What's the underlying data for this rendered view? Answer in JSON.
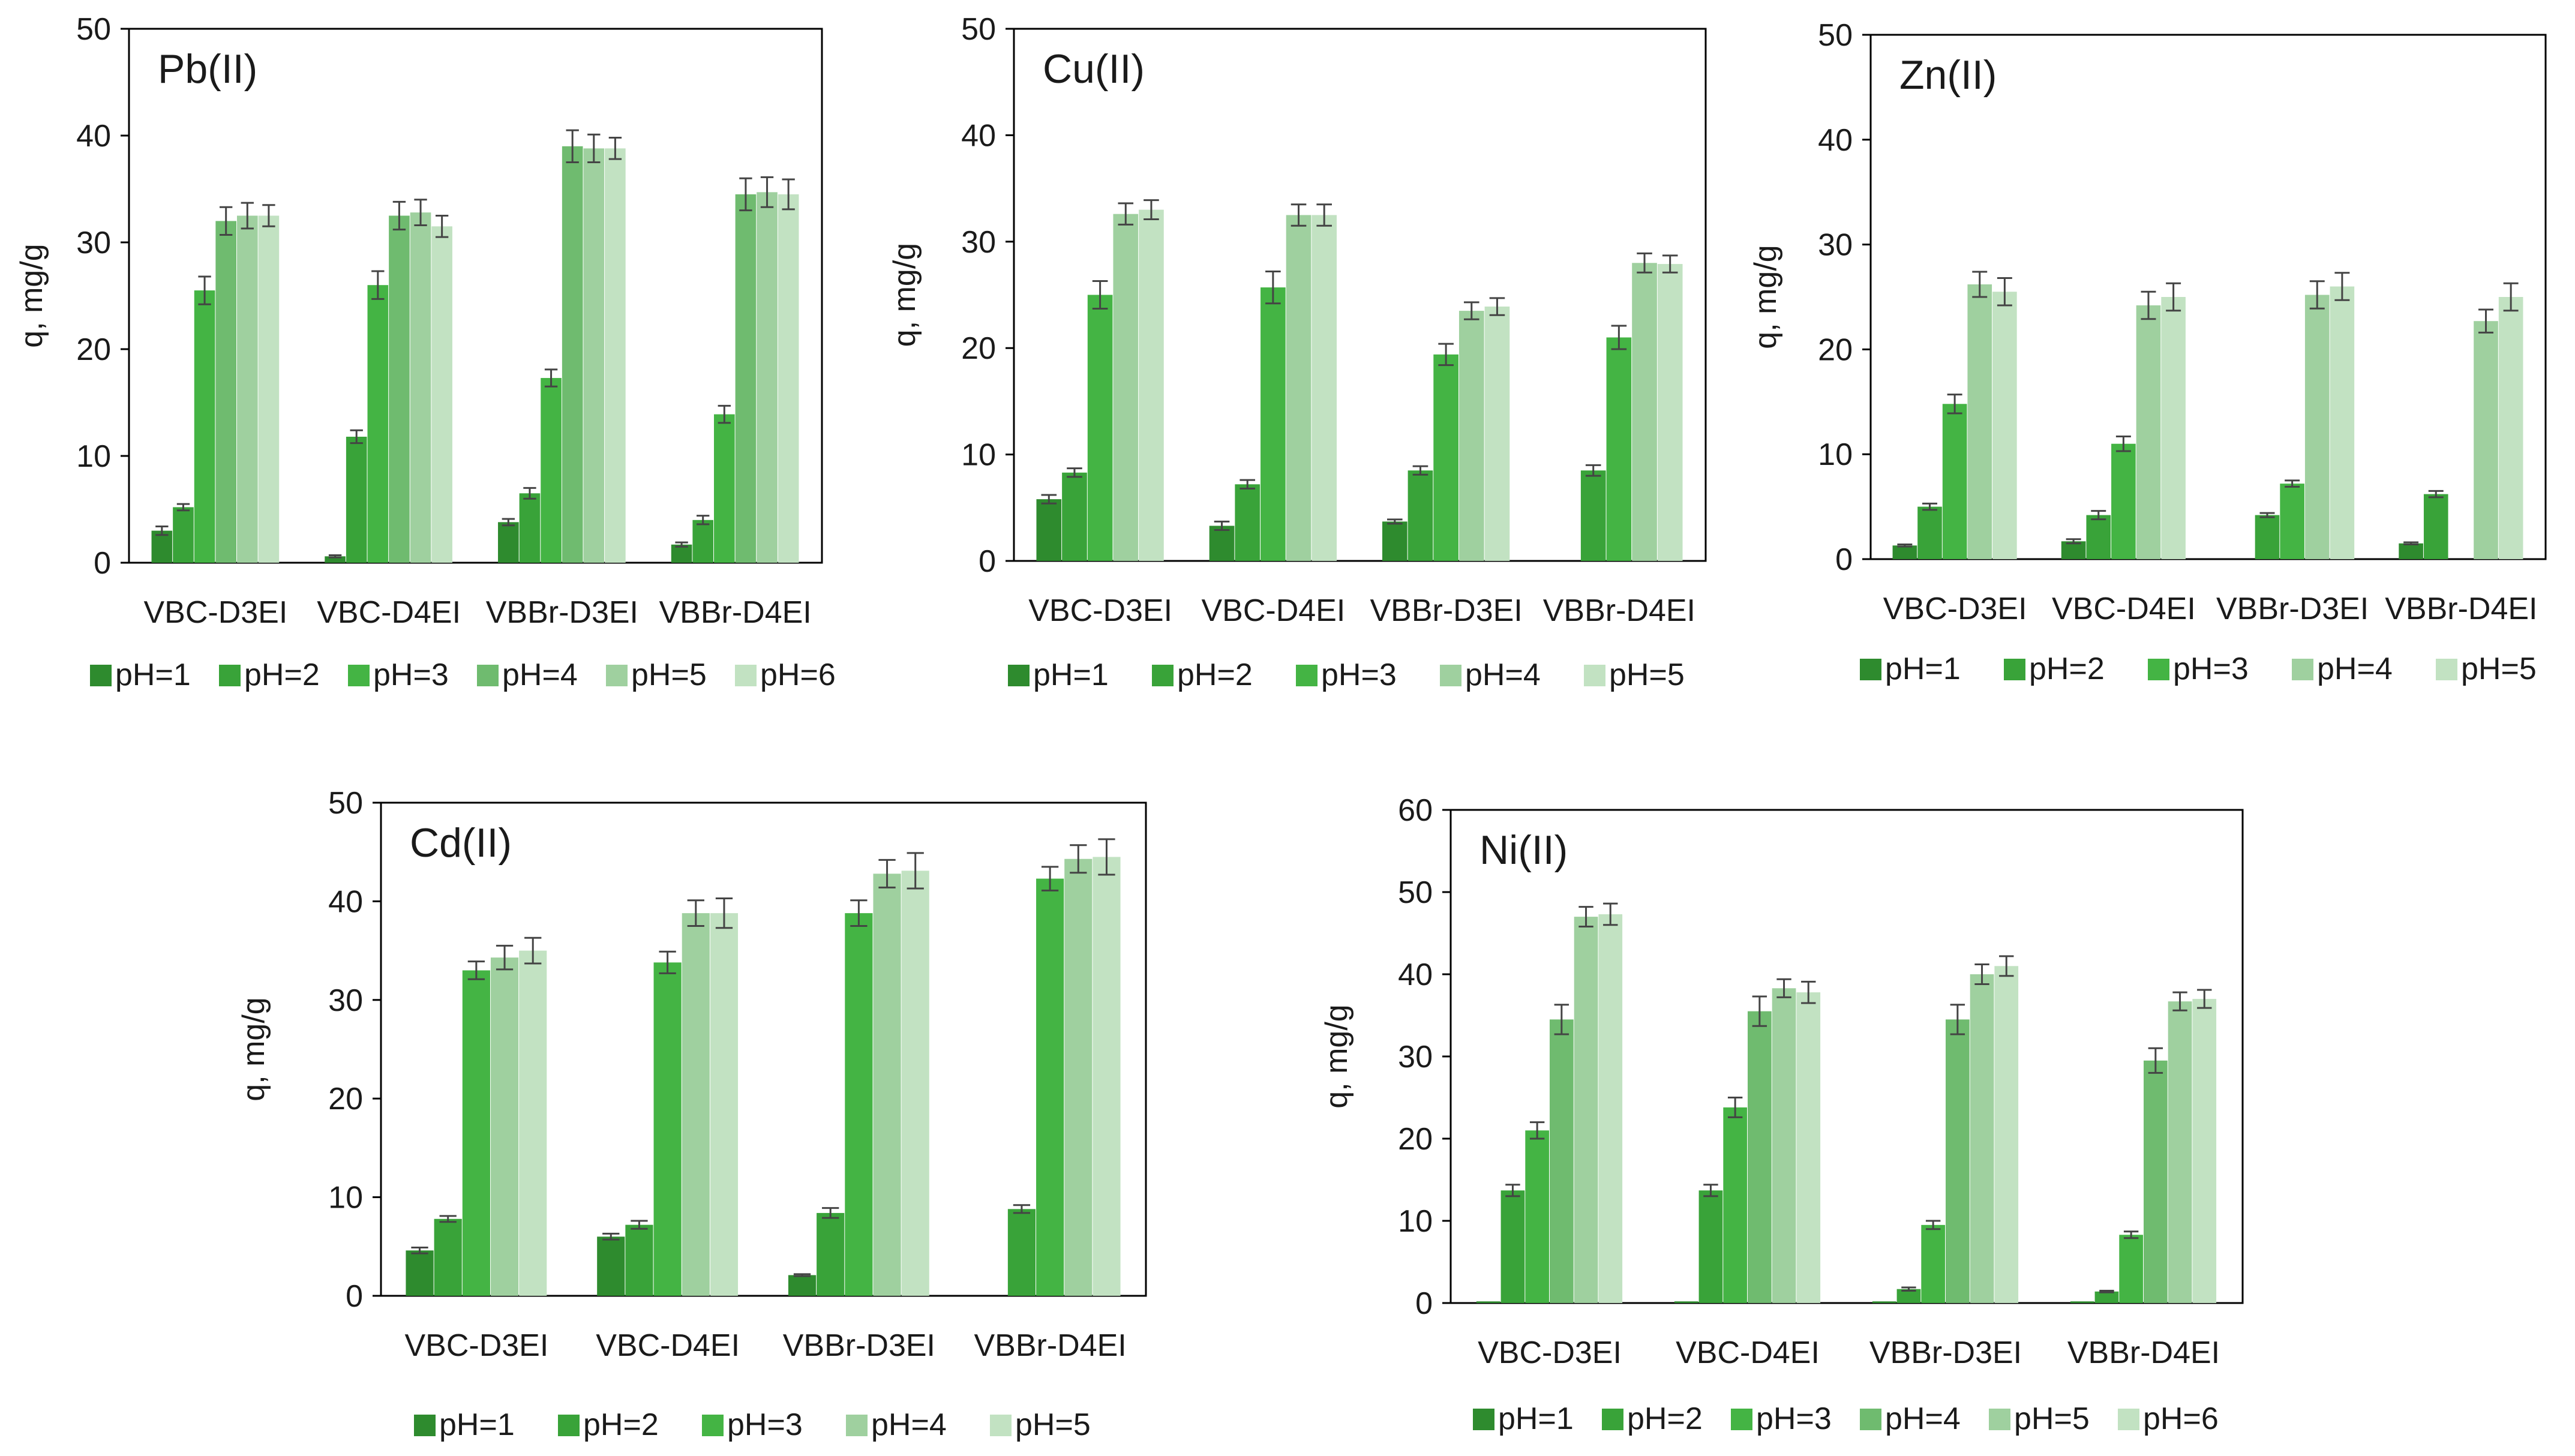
{
  "chart_data": [
    {
      "type": "bar",
      "title": "Pb(II)",
      "xlabel": "",
      "ylabel": "q, mg/g",
      "ylim": [
        0,
        50
      ],
      "yticks": [
        "0",
        "10",
        "20",
        "30",
        "40",
        "50"
      ],
      "categories": [
        "VBC-D3EI",
        "VBC-D4EI",
        "VBBr-D3EI",
        "VBBr-D4EI"
      ],
      "legend_position": "bottom",
      "series": [
        {
          "name": "pH=1",
          "color": "#2e8b2e",
          "values": [
            3.0,
            0.6,
            3.8,
            1.7
          ],
          "errors": [
            0.4,
            0.1,
            0.3,
            0.2
          ]
        },
        {
          "name": "pH=2",
          "color": "#39a339",
          "values": [
            5.2,
            11.8,
            6.5,
            4.0
          ],
          "errors": [
            0.3,
            0.6,
            0.5,
            0.4
          ]
        },
        {
          "name": "pH=3",
          "color": "#44b444",
          "values": [
            25.5,
            26.0,
            17.3,
            13.9
          ],
          "errors": [
            1.3,
            1.3,
            0.8,
            0.8
          ]
        },
        {
          "name": "pH=4",
          "color": "#6fbb6f",
          "values": [
            32.0,
            32.5,
            39.0,
            34.5
          ],
          "errors": [
            1.3,
            1.3,
            1.5,
            1.5
          ]
        },
        {
          "name": "pH=5",
          "color": "#9fd09f",
          "values": [
            32.5,
            32.8,
            38.8,
            34.7
          ],
          "errors": [
            1.2,
            1.2,
            1.3,
            1.4
          ]
        },
        {
          "name": "pH=6",
          "color": "#c2e2c2",
          "values": [
            32.5,
            31.5,
            38.8,
            34.5
          ],
          "errors": [
            1.0,
            1.0,
            1.0,
            1.4
          ]
        }
      ]
    },
    {
      "type": "bar",
      "title": "Cu(II)",
      "xlabel": "",
      "ylabel": "q, mg/g",
      "ylim": [
        0,
        50
      ],
      "yticks": [
        "0",
        "10",
        "20",
        "30",
        "40",
        "50"
      ],
      "categories": [
        "VBC-D3EI",
        "VBC-D4EI",
        "VBBr-D3EI",
        "VBBr-D4EI"
      ],
      "legend_position": "bottom",
      "series": [
        {
          "name": "pH=1",
          "color": "#2e8b2e",
          "values": [
            5.8,
            3.3,
            3.7,
            0
          ],
          "errors": [
            0.4,
            0.4,
            0.2,
            0
          ]
        },
        {
          "name": "pH=2",
          "color": "#39a339",
          "values": [
            8.3,
            7.2,
            8.5,
            8.5
          ],
          "errors": [
            0.4,
            0.4,
            0.4,
            0.5
          ]
        },
        {
          "name": "pH=3",
          "color": "#44b444",
          "values": [
            25.0,
            25.7,
            19.4,
            21.0
          ],
          "errors": [
            1.3,
            1.5,
            1.0,
            1.1
          ]
        },
        {
          "name": "pH=4",
          "color": "#9fd09f",
          "values": [
            32.6,
            32.5,
            23.5,
            28.0
          ],
          "errors": [
            1.0,
            1.0,
            0.8,
            0.9
          ]
        },
        {
          "name": "pH=5",
          "color": "#c2e2c2",
          "values": [
            33.0,
            32.5,
            23.9,
            27.9
          ],
          "errors": [
            0.9,
            1.0,
            0.8,
            0.8
          ]
        }
      ]
    },
    {
      "type": "bar",
      "title": "Zn(II)",
      "xlabel": "",
      "ylabel": "q, mg/g",
      "ylim": [
        0,
        50
      ],
      "yticks": [
        "0",
        "10",
        "20",
        "30",
        "40",
        "50"
      ],
      "categories": [
        "VBC-D3EI",
        "VBC-D4EI",
        "VBBr-D3EI",
        "VBBr-D4EI"
      ],
      "legend_position": "bottom",
      "series": [
        {
          "name": "pH=1",
          "color": "#2e8b2e",
          "values": [
            1.3,
            1.7,
            0,
            1.5
          ],
          "errors": [
            0.1,
            0.2,
            0,
            0.1
          ]
        },
        {
          "name": "pH=2",
          "color": "#39a339",
          "values": [
            5.0,
            4.2,
            4.2,
            6.2
          ],
          "errors": [
            0.3,
            0.4,
            0.2,
            0.3
          ]
        },
        {
          "name": "pH=3",
          "color": "#44b444",
          "values": [
            14.8,
            11.0,
            7.2,
            0
          ],
          "errors": [
            0.9,
            0.7,
            0.3,
            0
          ]
        },
        {
          "name": "pH=4",
          "color": "#9fd09f",
          "values": [
            26.2,
            24.2,
            25.2,
            22.7
          ],
          "errors": [
            1.2,
            1.3,
            1.3,
            1.1
          ]
        },
        {
          "name": "pH=5",
          "color": "#c2e2c2",
          "values": [
            25.5,
            25.0,
            26.0,
            25.0
          ],
          "errors": [
            1.3,
            1.3,
            1.3,
            1.3
          ]
        }
      ]
    },
    {
      "type": "bar",
      "title": "Cd(II)",
      "xlabel": "",
      "ylabel": "q, mg/g",
      "ylim": [
        0,
        50
      ],
      "yticks": [
        "0",
        "10",
        "20",
        "30",
        "40",
        "50"
      ],
      "categories": [
        "VBC-D3EI",
        "VBC-D4EI",
        "VBBr-D3EI",
        "VBBr-D4EI"
      ],
      "legend_position": "bottom",
      "series": [
        {
          "name": "pH=1",
          "color": "#2e8b2e",
          "values": [
            4.6,
            6.0,
            2.1,
            0
          ],
          "errors": [
            0.3,
            0.3,
            0.1,
            0
          ]
        },
        {
          "name": "pH=2",
          "color": "#39a339",
          "values": [
            7.8,
            7.2,
            8.4,
            8.8
          ],
          "errors": [
            0.3,
            0.4,
            0.5,
            0.4
          ]
        },
        {
          "name": "pH=3",
          "color": "#44b444",
          "values": [
            33.0,
            33.8,
            38.8,
            42.3
          ],
          "errors": [
            0.9,
            1.1,
            1.3,
            1.2
          ]
        },
        {
          "name": "pH=4",
          "color": "#9fd09f",
          "values": [
            34.3,
            38.8,
            42.8,
            44.3
          ],
          "errors": [
            1.2,
            1.3,
            1.4,
            1.4
          ]
        },
        {
          "name": "pH=5",
          "color": "#c2e2c2",
          "values": [
            35.0,
            38.8,
            43.1,
            44.5
          ],
          "errors": [
            1.3,
            1.5,
            1.8,
            1.8
          ]
        }
      ]
    },
    {
      "type": "bar",
      "title": "Ni(II)",
      "xlabel": "",
      "ylabel": "q, mg/g",
      "ylim": [
        0,
        60
      ],
      "yticks": [
        "0",
        "10",
        "20",
        "30",
        "40",
        "50",
        "60"
      ],
      "categories": [
        "VBC-D3EI",
        "VBC-D4EI",
        "VBBr-D3EI",
        "VBBr-D4EI"
      ],
      "legend_position": "bottom",
      "series": [
        {
          "name": "pH=1",
          "color": "#2e8b2e",
          "values": [
            0.2,
            0.2,
            0.2,
            0.2
          ],
          "errors": [
            0,
            0,
            0,
            0
          ]
        },
        {
          "name": "pH=2",
          "color": "#39a339",
          "values": [
            13.7,
            13.7,
            1.7,
            1.4
          ],
          "errors": [
            0.7,
            0.7,
            0.2,
            0.1
          ]
        },
        {
          "name": "pH=3",
          "color": "#44b444",
          "values": [
            21.0,
            23.8,
            9.5,
            8.3
          ],
          "errors": [
            1.0,
            1.2,
            0.5,
            0.4
          ]
        },
        {
          "name": "pH=4",
          "color": "#6fbb6f",
          "values": [
            34.5,
            35.5,
            34.5,
            29.5
          ],
          "errors": [
            1.8,
            1.8,
            1.8,
            1.5
          ]
        },
        {
          "name": "pH=5",
          "color": "#9fd09f",
          "values": [
            47.0,
            38.3,
            40.0,
            36.7
          ],
          "errors": [
            1.2,
            1.1,
            1.2,
            1.1
          ]
        },
        {
          "name": "pH=6",
          "color": "#c2e2c2",
          "values": [
            47.3,
            37.8,
            41.0,
            37.0
          ],
          "errors": [
            1.3,
            1.3,
            1.2,
            1.1
          ]
        }
      ]
    }
  ]
}
